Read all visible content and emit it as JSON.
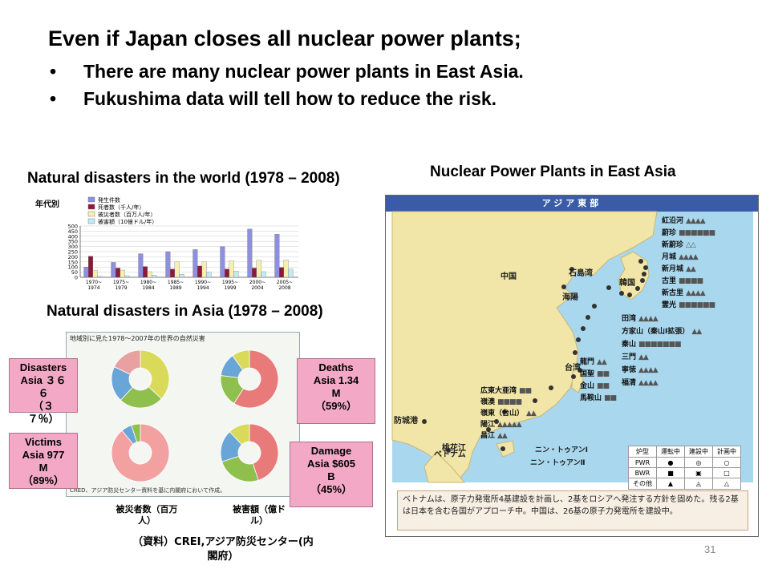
{
  "headline": {
    "title": "Even if Japan closes all nuclear power plants;",
    "bullets": [
      "There are many nuclear power plants in East Asia.",
      "Fukushima data will tell how to reduce the risk."
    ]
  },
  "captions": {
    "world": "Natural disasters in the world (1978 – 2008)",
    "asia": "Natural disasters in Asia (1978 – 2008)",
    "map": "Nuclear Power Plants in East Asia"
  },
  "world_chart": {
    "corner_label": "年代別",
    "legend": [
      "発生件数",
      "死者数（千人/年）",
      "被災者数（百万人/年）",
      "被害額（10億ドル/年）"
    ]
  },
  "chart_data": {
    "type": "bar",
    "categories": [
      "1970~1974",
      "1975~1979",
      "1980~1984",
      "1985~1989",
      "1990~1994",
      "1995~1999",
      "2000~2004",
      "2005~2008"
    ],
    "ylim": [
      0,
      500
    ],
    "yticks": [
      0,
      50,
      100,
      150,
      200,
      250,
      300,
      350,
      400,
      450,
      500
    ],
    "series": [
      {
        "name": "発生件数",
        "color": "#8f8fe0",
        "values": [
          100,
          145,
          230,
          250,
          270,
          300,
          470,
          420
        ]
      },
      {
        "name": "死者数（千人/年）",
        "color": "#8b1a3a",
        "values": [
          205,
          90,
          105,
          80,
          110,
          80,
          90,
          95
        ]
      },
      {
        "name": "被災者数（百万人/年）",
        "color": "#f6efb0",
        "values": [
          65,
          70,
          55,
          150,
          150,
          160,
          165,
          170
        ]
      },
      {
        "name": "被害額（10億ドル/年）",
        "color": "#bfeaf6",
        "values": [
          10,
          15,
          20,
          30,
          50,
          60,
          55,
          80
        ]
      }
    ]
  },
  "asia_figure": {
    "title": "地域別に見た1978～2007年の世界の自然災害",
    "source": "CRED、アジア防災センター資料を基に内閣府において作成。"
  },
  "boxes": {
    "disasters": "Disasters\nAsia ３６\n６\n（３\n７％）",
    "victims": "Victims\nAsia 977\nM\n（89%）",
    "deaths": "Deaths\nAsia 1.34\nM\n（59%）",
    "damage": "Damage\nAsia $605\nB\n（45%）"
  },
  "jp_labels": {
    "victims": "被災者数（百万\n人）",
    "damage": "被害額（億ド\nル）"
  },
  "source_line": "（資料）CREI,アジア防災センター(内\n閣府）",
  "map": {
    "header": "アジア東部",
    "country_labels": [
      "中国",
      "韓国",
      "台湾",
      "ベトナム"
    ],
    "plants_korea": [
      {
        "name": "紅沿河",
        "marks": "▲▲▲▲"
      },
      {
        "name": "蔚珍",
        "marks": "■■■■■■"
      },
      {
        "name": "新蔚珍",
        "marks": "△△"
      },
      {
        "name": "月城",
        "marks": "▲▲▲▲"
      },
      {
        "name": "新月城",
        "marks": "▲▲"
      },
      {
        "name": "古里",
        "marks": "■■■■"
      },
      {
        "name": "新古里",
        "marks": "▲▲▲▲"
      },
      {
        "name": "霊光",
        "marks": "■■■■■■"
      }
    ],
    "plants_china": [
      {
        "name": "田湾",
        "marks": "▲▲▲▲"
      },
      {
        "name": "方家山（秦山Ⅰ拡張）",
        "marks": "▲▲"
      },
      {
        "name": "秦山",
        "marks": "■■■■■■■"
      },
      {
        "name": "三門",
        "marks": "▲▲"
      },
      {
        "name": "寧徳",
        "marks": "▲▲▲▲"
      },
      {
        "name": "福清",
        "marks": "▲▲▲▲"
      }
    ],
    "plants_taiwan": [
      {
        "name": "龍門",
        "marks": "▲▲"
      },
      {
        "name": "国聖",
        "marks": "■■"
      },
      {
        "name": "金山",
        "marks": "■■"
      },
      {
        "name": "馬鞍山",
        "marks": "■■"
      }
    ],
    "plants_south": [
      {
        "name": "広東大亜湾",
        "marks": "■■"
      },
      {
        "name": "嶺澳",
        "marks": "■■■■"
      },
      {
        "name": "嶺東（台山）",
        "marks": "▲▲"
      },
      {
        "name": "陽江",
        "marks": "▲▲▲▲▲"
      },
      {
        "name": "昌江",
        "marks": "▲▲"
      }
    ],
    "west_labels": [
      "石島湾",
      "海陽",
      "防城港",
      "桃花江"
    ],
    "vn_plants": [
      "ニン・トゥアンⅠ",
      "ニン・トゥアンⅡ"
    ],
    "legend_headers": [
      "炉型",
      "運転中",
      "建設中",
      "計画中"
    ],
    "legend_rows": [
      {
        "type": "PWR",
        "marks": [
          "●",
          "◎",
          "○"
        ]
      },
      {
        "type": "BWR",
        "marks": [
          "■",
          "▣",
          "□"
        ]
      },
      {
        "type": "その他",
        "marks": [
          "▲",
          "◬",
          "△"
        ]
      }
    ],
    "note": "ベトナムは、原子力発電所4基建設を計画し、2基をロシアへ発注する方針を固めた。残る2基は日本を含む各国がアプローチ中。中国は、26基の原子力発電所を建設中。"
  },
  "page_number": "31"
}
